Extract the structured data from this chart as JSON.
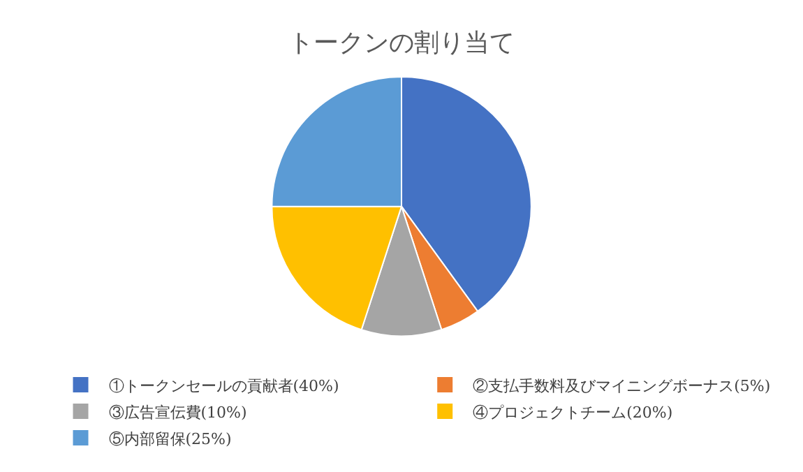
{
  "chart_data": {
    "type": "pie",
    "title": "トークンの割り当て",
    "categories": [
      "①トークンセールの貢献者(40%)",
      "②支払手数料及びマイニングボーナス(5%)",
      "③広告宣伝費(10%)",
      "④プロジェクトチーム(20%)",
      "⑤内部留保(25%)"
    ],
    "values": [
      40,
      5,
      10,
      20,
      25
    ],
    "colors": [
      "#4472c4",
      "#ed7d31",
      "#a5a5a5",
      "#ffc000",
      "#5b9bd5"
    ],
    "legend": "bottom"
  }
}
